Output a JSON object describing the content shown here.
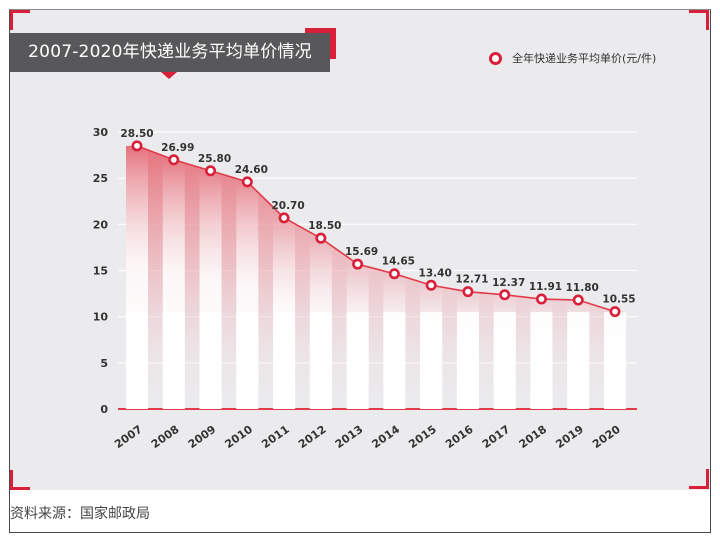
{
  "title": "2007-2020年快递业务平均单价情况",
  "source": "资料来源：国家邮政局",
  "colors": {
    "accent": "#d9203a",
    "title_bg": "#58585a",
    "panel_bg": "#ebeaec",
    "line": "#e23a4a"
  },
  "chart_data": {
    "type": "line",
    "title": "2007-2020年快递业务平均单价情况",
    "xlabel": "",
    "ylabel": "",
    "categories": [
      "2007",
      "2008",
      "2009",
      "2010",
      "2011",
      "2012",
      "2013",
      "2014",
      "2015",
      "2016",
      "2017",
      "2018",
      "2019",
      "2020"
    ],
    "series": [
      {
        "name": "全年快递业务平均单价(元/件)",
        "values": [
          28.5,
          26.99,
          25.8,
          24.6,
          20.7,
          18.5,
          15.69,
          14.65,
          13.4,
          12.71,
          12.37,
          11.91,
          11.8,
          10.55
        ]
      }
    ],
    "value_labels": [
      "28.50",
      "26.99",
      "25.80",
      "24.60",
      "20.70",
      "18.50",
      "15.69",
      "14.65",
      "13.40",
      "12.71",
      "12.37",
      "11.91",
      "11.80",
      "10.55"
    ],
    "yticks": [
      0,
      5,
      10,
      15,
      20,
      25,
      30
    ],
    "ylim": [
      0,
      30
    ],
    "grid": true,
    "legend": "top-right"
  }
}
